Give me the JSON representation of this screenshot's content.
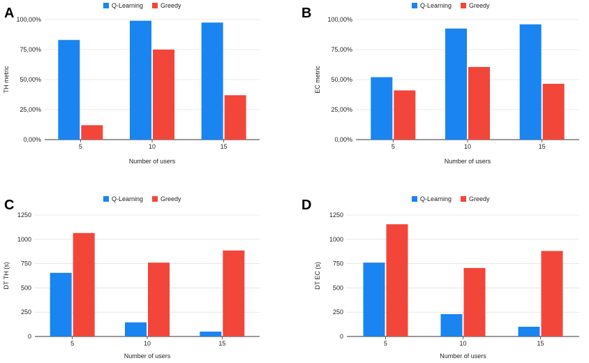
{
  "chart_data": [
    {
      "panel": "A",
      "type": "bar",
      "categories": [
        "5",
        "10",
        "15"
      ],
      "series": [
        {
          "name": "Q-Learning",
          "values": [
            83,
            99,
            97.5
          ]
        },
        {
          "name": "Greedy",
          "values": [
            12,
            75,
            37
          ]
        }
      ],
      "xlabel": "Number of users",
      "ylabel": "TH metric",
      "ylim": [
        0,
        100
      ],
      "yticks": [
        "0,00%",
        "25,00%",
        "50,00%",
        "75,00%",
        "100,00%"
      ],
      "legend_position": "top-center"
    },
    {
      "panel": "B",
      "type": "bar",
      "categories": [
        "5",
        "10",
        "15"
      ],
      "series": [
        {
          "name": "Q-Learning",
          "values": [
            52,
            92.5,
            96
          ]
        },
        {
          "name": "Greedy",
          "values": [
            41,
            60.5,
            46.5
          ]
        }
      ],
      "xlabel": "Number of users",
      "ylabel": "EC metric",
      "ylim": [
        0,
        100
      ],
      "yticks": [
        "0,00%",
        "25,00%",
        "50,00%",
        "75,00%",
        "100,00%"
      ],
      "legend_position": "top-center"
    },
    {
      "panel": "C",
      "type": "bar",
      "categories": [
        "5",
        "10",
        "15"
      ],
      "series": [
        {
          "name": "Q-Learning",
          "values": [
            655,
            145,
            50
          ]
        },
        {
          "name": "Greedy",
          "values": [
            1065,
            760,
            885
          ]
        }
      ],
      "xlabel": "Number of users",
      "ylabel": "DT TH (s)",
      "ylim": [
        0,
        1250
      ],
      "yticks": [
        "0",
        "250",
        "500",
        "750",
        "1000",
        "1250"
      ],
      "legend_position": "top-center"
    },
    {
      "panel": "D",
      "type": "bar",
      "categories": [
        "5",
        "10",
        "15"
      ],
      "series": [
        {
          "name": "Q-Learning",
          "values": [
            760,
            230,
            100
          ]
        },
        {
          "name": "Greedy",
          "values": [
            1155,
            705,
            880
          ]
        }
      ],
      "xlabel": "Number of users",
      "ylabel": "DT EC (s)",
      "ylim": [
        0,
        1250
      ],
      "yticks": [
        "0",
        "250",
        "500",
        "750",
        "1000",
        "1250"
      ],
      "legend_position": "top-center"
    }
  ],
  "colors": {
    "Q-Learning": "#1a84f0",
    "Greedy": "#f2463b",
    "axis": "#333333",
    "grid": "#d8d8d8"
  }
}
